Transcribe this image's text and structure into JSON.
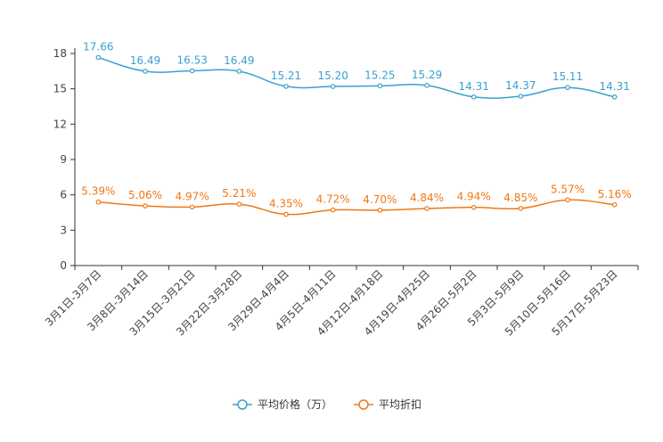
{
  "chart_data": {
    "type": "line",
    "title": "",
    "xlabel": "",
    "ylabel": "",
    "ylim": [
      0,
      18
    ],
    "yticks": [
      0,
      3,
      6,
      9,
      12,
      15,
      18
    ],
    "grid": false,
    "legend_position": "bottom",
    "categories": [
      "3月1日-3月7日",
      "3月8日-3月14日",
      "3月15日-3月21日",
      "3月22日-3月28日",
      "3月29日-4月4日",
      "4月5日-4月11日",
      "4月12日-4月18日",
      "4月19日-4月25日",
      "4月26日-5月2日",
      "5月3日-5月9日",
      "5月10日-5月16日",
      "5月17日-5月23日"
    ],
    "series": [
      {
        "name": "平均价格（万）",
        "color": "#3aa0d0",
        "values": [
          17.66,
          16.49,
          16.53,
          16.49,
          15.21,
          15.2,
          15.25,
          15.29,
          14.31,
          14.37,
          15.11,
          14.31
        ],
        "labels": [
          "17.66",
          "16.49",
          "16.53",
          "16.49",
          "15.21",
          "15.20",
          "15.25",
          "15.29",
          "14.31",
          "14.37",
          "15.11",
          "14.31"
        ]
      },
      {
        "name": "平均折扣",
        "color": "#f07814",
        "values": [
          5.39,
          5.06,
          4.97,
          5.21,
          4.35,
          4.72,
          4.7,
          4.84,
          4.94,
          4.85,
          5.57,
          5.16
        ],
        "labels": [
          "5.39%",
          "5.06%",
          "4.97%",
          "5.21%",
          "4.35%",
          "4.72%",
          "4.70%",
          "4.84%",
          "4.94%",
          "4.85%",
          "5.57%",
          "5.16%"
        ]
      }
    ]
  }
}
